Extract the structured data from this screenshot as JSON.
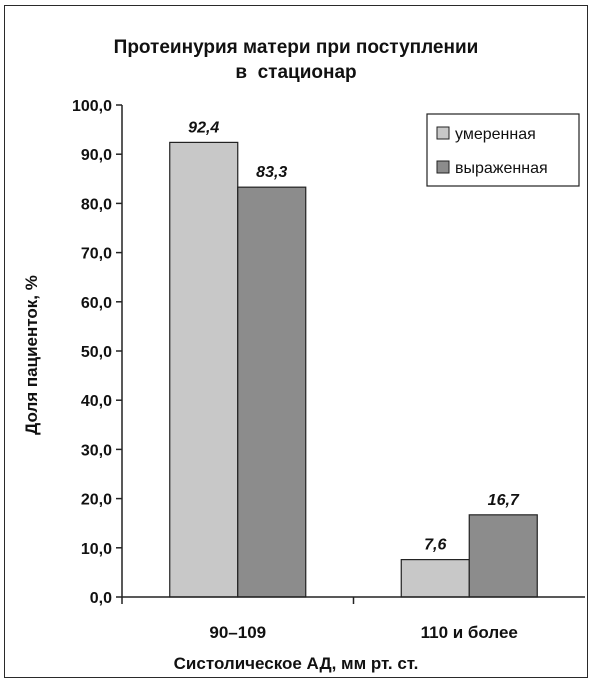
{
  "chart_data": {
    "type": "bar",
    "title_lines": [
      "Протеинурия матери при поступлении",
      "в  стационар"
    ],
    "xlabel": "Систолическое АД, мм рт. ст.",
    "ylabel": "Доля пациенток, %",
    "categories": [
      "90–109",
      "110 и более"
    ],
    "series": [
      {
        "name": "умеренная",
        "values": [
          92.4,
          7.6
        ],
        "color": "#c8c8c8",
        "labels": [
          "92,4",
          "7,6"
        ]
      },
      {
        "name": "выраженная",
        "values": [
          83.3,
          16.7
        ],
        "color": "#8c8c8c",
        "labels": [
          "83,3",
          "16,7"
        ]
      }
    ],
    "ylim": [
      0,
      100
    ],
    "yticks": [
      "0,0",
      "10,0",
      "20,0",
      "30,0",
      "40,0",
      "50,0",
      "60,0",
      "70,0",
      "80,0",
      "90,0",
      "100,0"
    ],
    "grid": false,
    "legend_position": "top-right",
    "bar_outline_color": "#222222"
  }
}
